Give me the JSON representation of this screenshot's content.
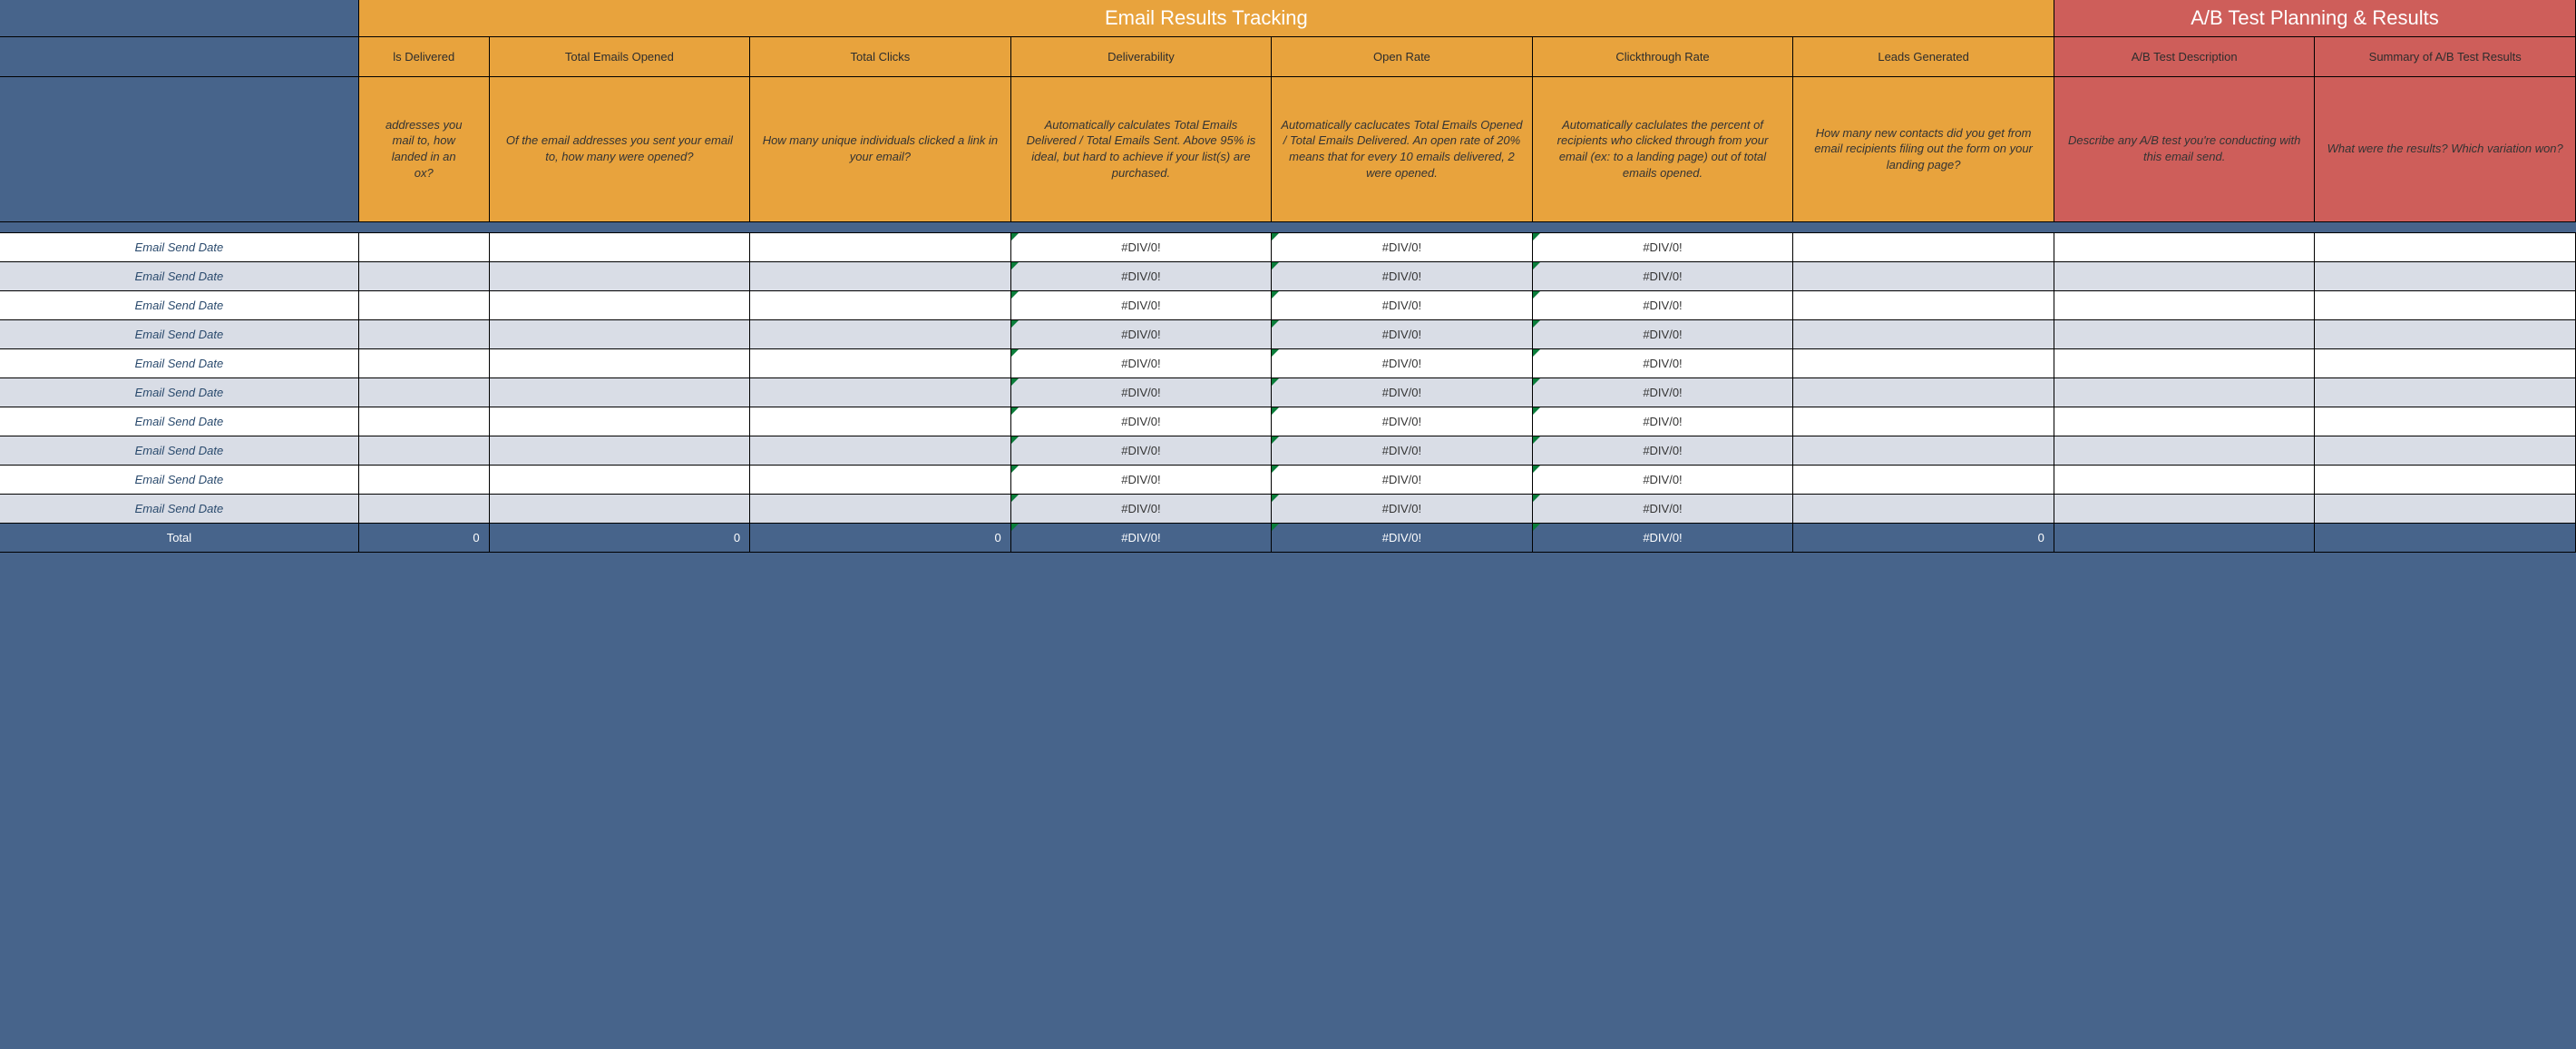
{
  "colors": {
    "page_bg": "#47648b",
    "section_orange": "#e8a33d",
    "section_red": "#ce5e5a",
    "row_even_bg": "#ffffff",
    "row_odd_bg": "#d9dde6",
    "error_triangle": "#0a7d3a",
    "white_text": "#ffffff",
    "dark_text": "#2d2d2d",
    "label_text": "#2a4a6d"
  },
  "sections": {
    "tracking_title": "Email Results Tracking",
    "ab_title": "A/B Test Planning & Results"
  },
  "headers": {
    "delivered_partial": "ls Delivered",
    "opened": "Total Emails Opened",
    "clicks": "Total Clicks",
    "deliverability": "Deliverability",
    "open_rate": "Open Rate",
    "ctr": "Clickthrough Rate",
    "leads": "Leads Generated",
    "ab_desc": "A/B Test Description",
    "ab_summary": "Summary of A/B Test Results"
  },
  "descriptions": {
    "delivered_partial": "addresses you\nmail to, how\nlanded in an\nox?",
    "opened": "Of the email addresses you sent your email to, how many were opened?",
    "clicks": "How many unique individuals clicked a link in your email?",
    "deliverability": "Automatically calculates Total Emails Delivered / Total Emails Sent. Above 95% is ideal, but hard to achieve if your list(s) are purchased.",
    "open_rate": "Automatically caclucates Total Emails Opened / Total Emails Delivered. An open rate of 20% means that for every 10 emails delivered, 2 were opened.",
    "ctr": "Automatically caclulates the percent of recipients who clicked through from your email (ex: to a landing page) out of total emails opened.",
    "leads": "How many new contacts did you get from email recipients filing out the form on your landing page?",
    "ab_desc": "Describe any A/B test you're conducting with this email send.",
    "ab_summary": "What were the results? Which variation won?"
  },
  "row_label": "Email Send Date",
  "error_value": "#DIV/0!",
  "zero": "0",
  "total_label": "Total",
  "row_count": 10
}
